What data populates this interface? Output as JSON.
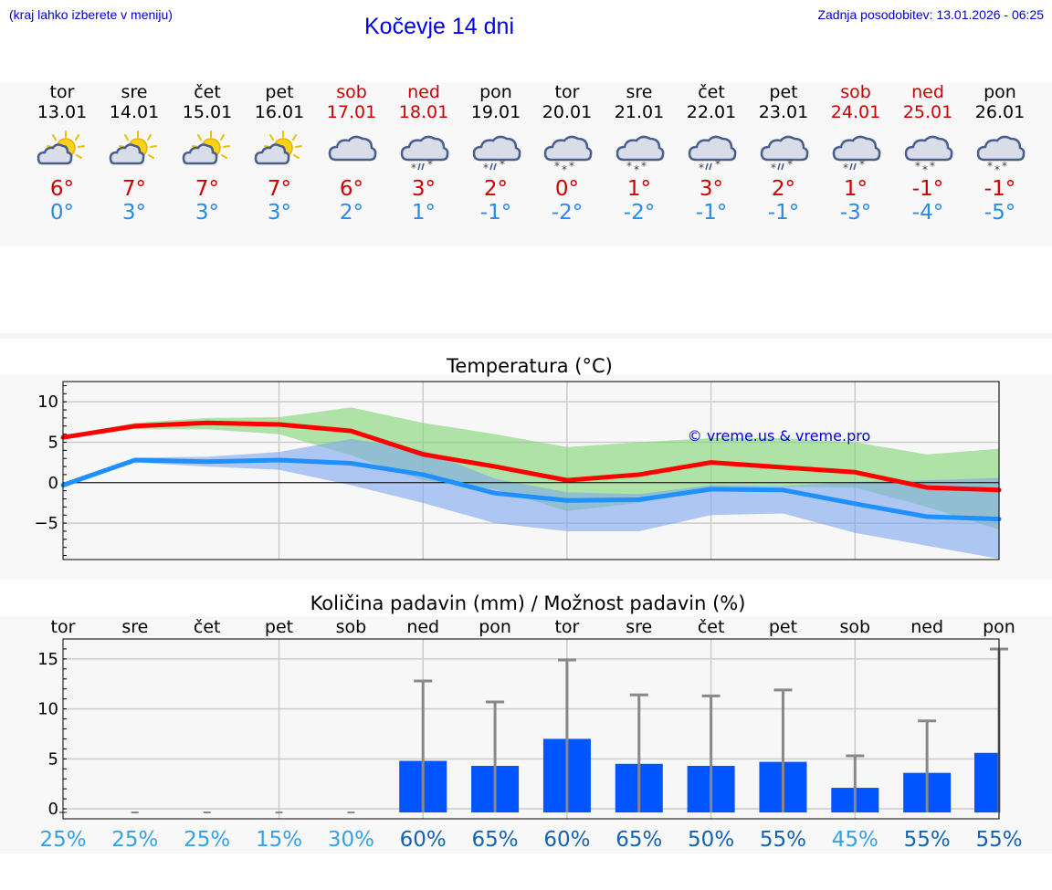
{
  "header": {
    "left_note": "(kraj lahko izberete v meniju)",
    "title": "Kočevje 14 dni",
    "updated": "Zadnja posodobitev: 13.01.2026 - 06:25"
  },
  "days": [
    {
      "name": "tor",
      "date": "13.01",
      "weekend": false,
      "icon": "partly-sunny-icon",
      "tmax": "6°",
      "tmin": "0°"
    },
    {
      "name": "sre",
      "date": "14.01",
      "weekend": false,
      "icon": "partly-sunny-icon",
      "tmax": "7°",
      "tmin": "3°"
    },
    {
      "name": "čet",
      "date": "15.01",
      "weekend": false,
      "icon": "partly-sunny-icon",
      "tmax": "7°",
      "tmin": "3°"
    },
    {
      "name": "pet",
      "date": "16.01",
      "weekend": false,
      "icon": "partly-sunny-icon",
      "tmax": "7°",
      "tmin": "3°"
    },
    {
      "name": "sob",
      "date": "17.01",
      "weekend": true,
      "icon": "cloudy-icon",
      "tmax": "6°",
      "tmin": "2°"
    },
    {
      "name": "ned",
      "date": "18.01",
      "weekend": true,
      "icon": "sleet-icon",
      "tmax": "3°",
      "tmin": "1°"
    },
    {
      "name": "pon",
      "date": "19.01",
      "weekend": false,
      "icon": "sleet-icon",
      "tmax": "2°",
      "tmin": "-1°"
    },
    {
      "name": "tor",
      "date": "20.01",
      "weekend": false,
      "icon": "snow-icon",
      "tmax": "0°",
      "tmin": "-2°"
    },
    {
      "name": "sre",
      "date": "21.01",
      "weekend": false,
      "icon": "snow-icon",
      "tmax": "1°",
      "tmin": "-2°"
    },
    {
      "name": "čet",
      "date": "22.01",
      "weekend": false,
      "icon": "sleet-icon",
      "tmax": "3°",
      "tmin": "-1°"
    },
    {
      "name": "pet",
      "date": "23.01",
      "weekend": false,
      "icon": "sleet-icon",
      "tmax": "2°",
      "tmin": "-1°"
    },
    {
      "name": "sob",
      "date": "24.01",
      "weekend": true,
      "icon": "sleet-icon",
      "tmax": "1°",
      "tmin": "-3°"
    },
    {
      "name": "ned",
      "date": "25.01",
      "weekend": true,
      "icon": "snow-icon",
      "tmax": "-1°",
      "tmin": "-4°"
    },
    {
      "name": "pon",
      "date": "26.01",
      "weekend": false,
      "icon": "snow-icon",
      "tmax": "-1°",
      "tmin": "-5°"
    }
  ],
  "chart_data": [
    {
      "type": "line",
      "title": "Temperatura (°C)",
      "watermark": "© vreme.us & vreme.pro",
      "x": [
        0,
        1,
        2,
        3,
        4,
        5,
        6,
        7,
        8,
        9,
        10,
        11,
        12,
        13
      ],
      "ylim": [
        -9.5,
        12.5
      ],
      "yticks": [
        10,
        5,
        0,
        -5
      ],
      "ytick_labels": [
        "10",
        "5",
        "0",
        "−5"
      ],
      "series": [
        {
          "name": "max",
          "color": "#ff0000",
          "values": [
            5.6,
            7.0,
            7.4,
            7.2,
            6.4,
            3.5,
            2.0,
            0.3,
            1.0,
            2.5,
            1.9,
            1.3,
            -0.6,
            -0.9
          ]
        },
        {
          "name": "min",
          "color": "#1e90ff",
          "values": [
            -0.3,
            2.8,
            2.6,
            2.8,
            2.4,
            1.0,
            -1.3,
            -2.2,
            -2.1,
            -0.8,
            -0.9,
            -2.6,
            -4.2,
            -4.5
          ]
        }
      ],
      "bands": [
        {
          "name": "max-range",
          "color": "#7fd46f",
          "upper": [
            5.8,
            7.4,
            8.0,
            8.1,
            9.3,
            7.4,
            6.0,
            4.4,
            5.0,
            5.5,
            5.5,
            5.0,
            3.5,
            4.2
          ],
          "lower": [
            5.4,
            6.6,
            6.6,
            6.0,
            3.4,
            0.3,
            -0.8,
            -3.5,
            -2.5,
            -0.5,
            -0.5,
            -0.6,
            -3.0,
            -5.8
          ]
        },
        {
          "name": "min-range",
          "color": "#7da6ef",
          "upper": [
            0.0,
            3.1,
            3.2,
            3.8,
            5.4,
            4.0,
            0.5,
            -1.2,
            -1.4,
            -0.3,
            -0.4,
            0.1,
            0.3,
            0.6
          ],
          "lower": [
            -0.6,
            2.5,
            2.0,
            1.6,
            -0.3,
            -2.5,
            -5.0,
            -6.0,
            -6.0,
            -4.0,
            -3.8,
            -6.2,
            -7.8,
            -9.4
          ]
        }
      ]
    },
    {
      "type": "bar",
      "title": "Količina padavin (mm) / Možnost padavin (%)",
      "categories": [
        "tor",
        "sre",
        "čet",
        "pet",
        "sob",
        "ned",
        "pon",
        "tor",
        "sre",
        "čet",
        "pet",
        "sob",
        "ned",
        "pon"
      ],
      "ylim": [
        -1,
        17
      ],
      "yticks": [
        15,
        10,
        5,
        0
      ],
      "values": [
        0,
        0,
        0,
        0,
        0,
        4.8,
        4.3,
        7.0,
        4.5,
        4.3,
        4.7,
        2.1,
        3.6,
        5.6
      ],
      "error_upper": [
        0,
        0,
        0,
        0,
        0,
        12.8,
        10.7,
        14.9,
        11.4,
        11.3,
        11.9,
        5.3,
        8.8,
        16.0
      ],
      "probabilities": [
        "25%",
        "25%",
        "25%",
        "15%",
        "30%",
        "60%",
        "65%",
        "60%",
        "65%",
        "50%",
        "55%",
        "45%",
        "55%",
        "55%"
      ],
      "probability_values": [
        25,
        25,
        25,
        15,
        30,
        60,
        65,
        60,
        65,
        50,
        55,
        45,
        55,
        55
      ],
      "bar_color": "#0055ff"
    }
  ]
}
